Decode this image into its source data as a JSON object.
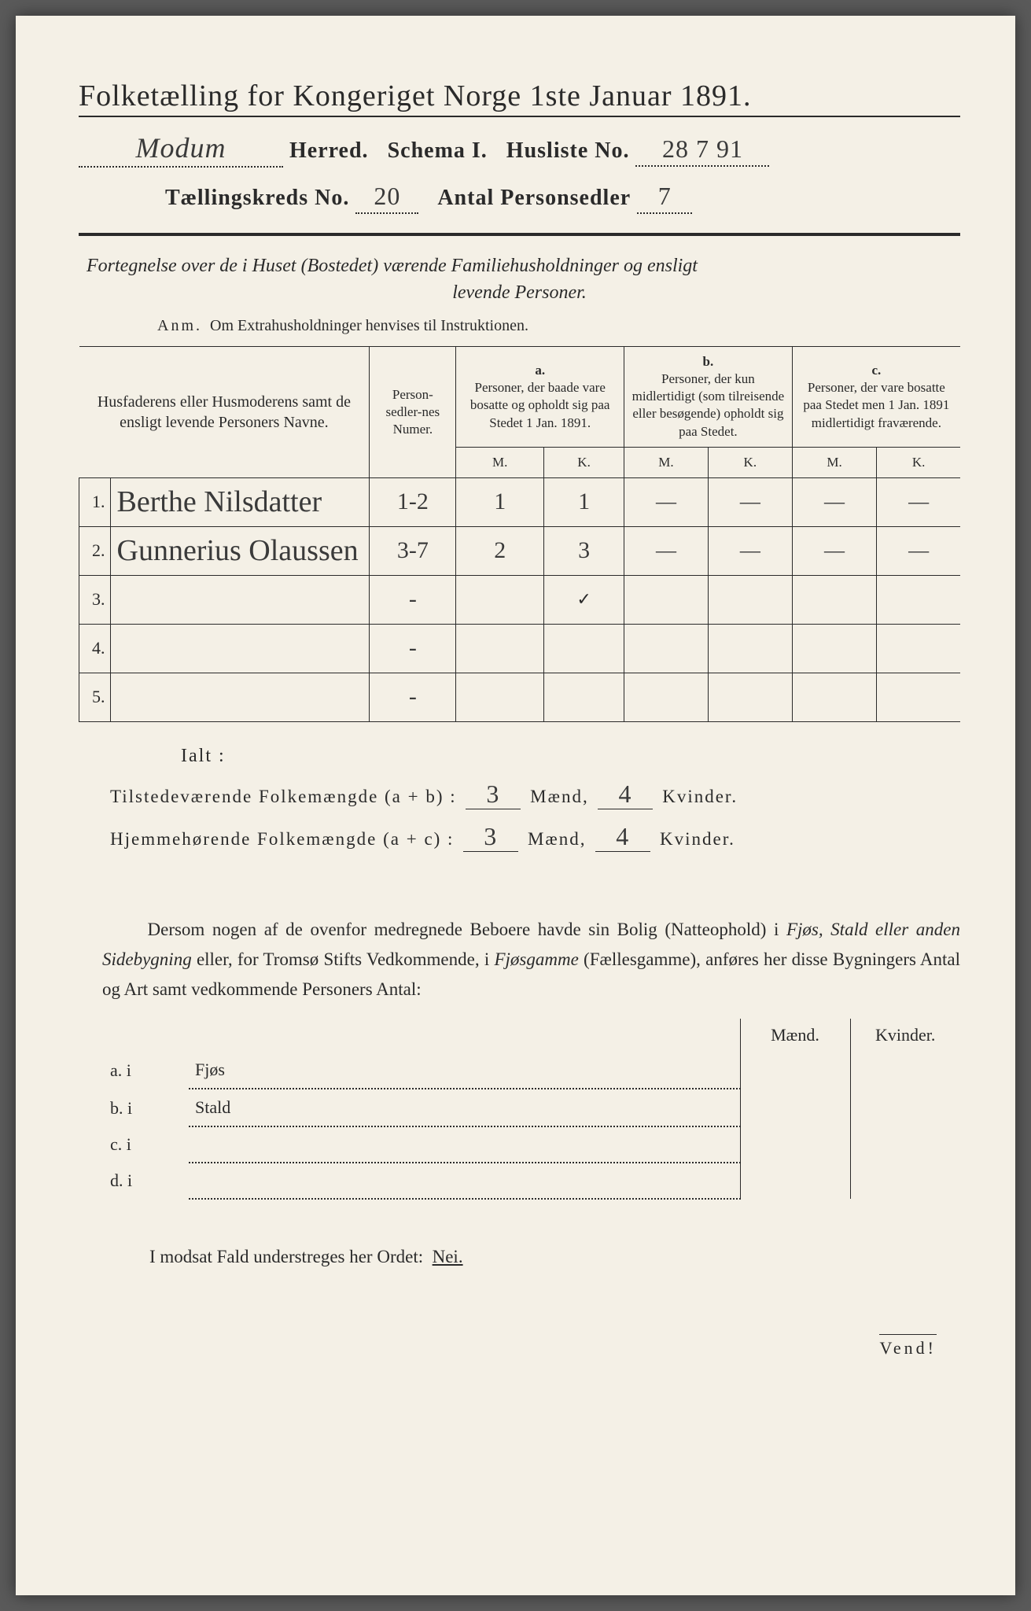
{
  "header": {
    "title": "Folketælling for Kongeriget Norge 1ste Januar 1891.",
    "herred_value": "Modum",
    "herred_label": "Herred.",
    "schema_label": "Schema I.",
    "husliste_label": "Husliste No.",
    "husliste_value": "28 7 91",
    "kreds_label": "Tællingskreds No.",
    "kreds_value": "20",
    "antal_label": "Antal Personsedler",
    "antal_value": "7"
  },
  "description": {
    "line1": "Fortegnelse over de i Huset (Bostedet) værende Familiehusholdninger og ensligt",
    "line2": "levende Personer.",
    "anm_label": "Anm.",
    "anm_text": "Om Extrahusholdninger henvises til Instruktionen."
  },
  "table": {
    "head_name": "Husfaderens eller Husmoderens samt de ensligt levende Personers Navne.",
    "head_num": "Person-sedler-nes Numer.",
    "head_a_label": "a.",
    "head_a": "Personer, der baade vare bosatte og opholdt sig paa Stedet 1 Jan. 1891.",
    "head_b_label": "b.",
    "head_b": "Personer, der kun midlertidigt (som tilreisende eller besøgende) opholdt sig paa Stedet.",
    "head_c_label": "c.",
    "head_c": "Personer, der vare bosatte paa Stedet men 1 Jan. 1891 midlertidigt fraværende.",
    "m": "M.",
    "k": "K.",
    "rows": [
      {
        "n": "1.",
        "name": "Berthe Nilsdatter",
        "num": "1-2",
        "am": "1",
        "ak": "1",
        "bm": "—",
        "bk": "—",
        "cm": "—",
        "ck": "—"
      },
      {
        "n": "2.",
        "name": "Gunnerius Olaussen",
        "num": "3-7",
        "am": "2",
        "ak": "3",
        "bm": "—",
        "bk": "—",
        "cm": "—",
        "ck": "—"
      },
      {
        "n": "3.",
        "name": "",
        "num": "-",
        "am": "",
        "ak": "✓",
        "bm": "",
        "bk": "",
        "cm": "",
        "ck": ""
      },
      {
        "n": "4.",
        "name": "",
        "num": "-",
        "am": "",
        "ak": "",
        "bm": "",
        "bk": "",
        "cm": "",
        "ck": ""
      },
      {
        "n": "5.",
        "name": "",
        "num": "-",
        "am": "",
        "ak": "",
        "bm": "",
        "bk": "",
        "cm": "",
        "ck": ""
      }
    ]
  },
  "totals": {
    "ialt": "Ialt :",
    "line1_label": "Tilstedeværende Folkemængde (a + b) :",
    "line2_label": "Hjemmehørende Folkemængde (a + c) :",
    "maend": "Mænd,",
    "kvinder": "Kvinder.",
    "l1_m": "3",
    "l1_k": "4",
    "l2_m": "3",
    "l2_k": "4"
  },
  "body": {
    "text": "Dersom nogen af de ovenfor medregnede Beboere havde sin Bolig (Natteophold) i Fjøs, Stald eller anden Sidebygning eller, for Tromsø Stifts Vedkommende, i Fjøsgamme (Fællesgamme), anføres her disse Bygningers Antal og Art samt vedkommende Personers Antal:"
  },
  "bldg": {
    "maend": "Mænd.",
    "kvinder": "Kvinder.",
    "rows": [
      {
        "l": "a.  i",
        "t": "Fjøs"
      },
      {
        "l": "b.  i",
        "t": "Stald"
      },
      {
        "l": "c.  i",
        "t": ""
      },
      {
        "l": "d.  i",
        "t": ""
      }
    ]
  },
  "nei": {
    "text": "I modsat Fald understreges her Ordet:",
    "word": "Nei."
  },
  "vend": "Vend!"
}
